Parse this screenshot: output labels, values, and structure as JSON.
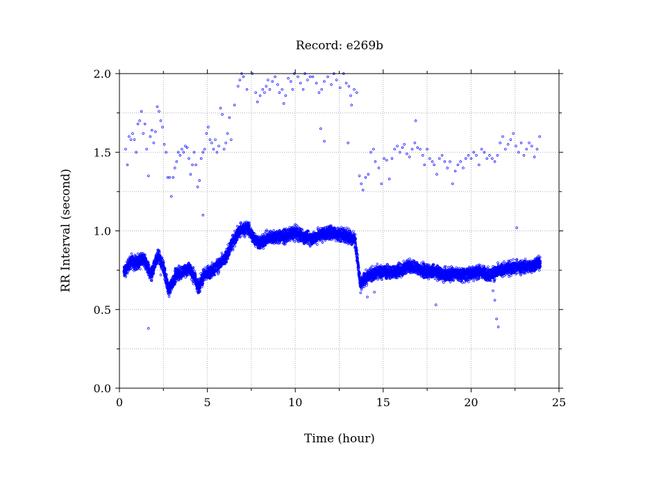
{
  "chart_data": {
    "type": "scatter",
    "title": "Record:  e269b",
    "xlabel": "Time (hour)",
    "ylabel": "RR Interval (second)",
    "xlim": [
      0,
      25
    ],
    "ylim": [
      0.0,
      2.0
    ],
    "x_ticks": [
      "0",
      "5",
      "10",
      "15",
      "20",
      "25"
    ],
    "y_ticks": [
      "0.0",
      "0.5",
      "1.0",
      "1.5",
      "2.0"
    ],
    "grid": true,
    "legend": "none",
    "marker": "open-circle",
    "color": "#0000ff",
    "series": [
      {
        "baseline": [
          [
            0.3,
            0.74
          ],
          [
            0.6,
            0.8
          ],
          [
            1.0,
            0.8
          ],
          [
            1.4,
            0.82
          ],
          [
            1.8,
            0.72
          ],
          [
            2.2,
            0.84
          ],
          [
            2.5,
            0.77
          ],
          [
            2.8,
            0.62
          ],
          [
            3.2,
            0.72
          ],
          [
            3.6,
            0.74
          ],
          [
            4.0,
            0.76
          ],
          [
            4.3,
            0.7
          ],
          [
            4.5,
            0.64
          ],
          [
            4.8,
            0.72
          ],
          [
            5.2,
            0.74
          ],
          [
            5.6,
            0.78
          ],
          [
            6.0,
            0.82
          ],
          [
            6.4,
            0.92
          ],
          [
            6.8,
            1.0
          ],
          [
            7.3,
            1.02
          ],
          [
            7.6,
            0.96
          ],
          [
            8.0,
            0.92
          ],
          [
            8.5,
            0.96
          ],
          [
            9.0,
            0.96
          ],
          [
            9.5,
            0.97
          ],
          [
            10.0,
            0.99
          ],
          [
            10.5,
            0.96
          ],
          [
            11.0,
            0.95
          ],
          [
            11.5,
            0.98
          ],
          [
            12.0,
            0.99
          ],
          [
            12.5,
            0.98
          ],
          [
            13.0,
            0.97
          ],
          [
            13.4,
            0.94
          ],
          [
            13.7,
            0.66
          ],
          [
            14.2,
            0.72
          ],
          [
            14.8,
            0.74
          ],
          [
            15.5,
            0.74
          ],
          [
            16.0,
            0.75
          ],
          [
            16.5,
            0.78
          ],
          [
            17.0,
            0.76
          ],
          [
            17.5,
            0.74
          ],
          [
            18.0,
            0.74
          ],
          [
            18.5,
            0.72
          ],
          [
            19.0,
            0.73
          ],
          [
            19.5,
            0.72
          ],
          [
            20.0,
            0.73
          ],
          [
            20.5,
            0.74
          ],
          [
            21.0,
            0.72
          ],
          [
            21.5,
            0.74
          ],
          [
            22.0,
            0.76
          ],
          [
            22.5,
            0.77
          ],
          [
            23.0,
            0.77
          ],
          [
            23.5,
            0.78
          ],
          [
            23.95,
            0.8
          ]
        ],
        "spread": 0.06,
        "x_range": [
          0.25,
          23.95
        ],
        "outliers": [
          [
            0.35,
            1.52
          ],
          [
            0.45,
            1.42
          ],
          [
            0.55,
            1.6
          ],
          [
            0.65,
            1.58
          ],
          [
            0.75,
            1.62
          ],
          [
            0.85,
            1.58
          ],
          [
            0.95,
            1.5
          ],
          [
            1.05,
            1.68
          ],
          [
            1.15,
            1.7
          ],
          [
            1.25,
            1.76
          ],
          [
            1.35,
            1.62
          ],
          [
            1.45,
            1.68
          ],
          [
            1.55,
            1.52
          ],
          [
            1.65,
            1.35
          ],
          [
            1.75,
            1.6
          ],
          [
            1.85,
            1.64
          ],
          [
            1.95,
            1.56
          ],
          [
            2.05,
            1.63
          ],
          [
            2.15,
            1.79
          ],
          [
            2.25,
            1.76
          ],
          [
            2.35,
            1.7
          ],
          [
            2.45,
            1.66
          ],
          [
            2.55,
            1.55
          ],
          [
            2.65,
            1.5
          ],
          [
            2.75,
            1.34
          ],
          [
            2.85,
            1.34
          ],
          [
            2.95,
            1.22
          ],
          [
            3.05,
            1.34
          ],
          [
            3.15,
            1.4
          ],
          [
            3.25,
            1.44
          ],
          [
            3.35,
            1.5
          ],
          [
            3.45,
            1.48
          ],
          [
            3.55,
            1.52
          ],
          [
            3.65,
            1.5
          ],
          [
            3.75,
            1.54
          ],
          [
            3.85,
            1.53
          ],
          [
            3.95,
            1.46
          ],
          [
            4.05,
            1.36
          ],
          [
            4.15,
            1.42
          ],
          [
            4.25,
            1.5
          ],
          [
            4.35,
            1.42
          ],
          [
            4.45,
            1.28
          ],
          [
            4.55,
            1.32
          ],
          [
            4.65,
            1.46
          ],
          [
            4.75,
            1.5
          ],
          [
            4.85,
            1.52
          ],
          [
            4.95,
            1.62
          ],
          [
            5.05,
            1.66
          ],
          [
            5.15,
            1.58
          ],
          [
            5.25,
            1.56
          ],
          [
            5.35,
            1.52
          ],
          [
            5.45,
            1.58
          ],
          [
            5.55,
            1.5
          ],
          [
            5.65,
            1.54
          ],
          [
            5.75,
            1.78
          ],
          [
            5.85,
            1.74
          ],
          [
            5.95,
            1.52
          ],
          [
            6.05,
            1.56
          ],
          [
            6.15,
            1.62
          ],
          [
            6.25,
            1.72
          ],
          [
            6.35,
            1.58
          ],
          [
            6.55,
            1.8
          ],
          [
            6.75,
            1.92
          ],
          [
            6.85,
            1.96
          ],
          [
            6.95,
            2.0
          ],
          [
            7.05,
            1.98
          ],
          [
            7.25,
            1.9
          ],
          [
            7.55,
            2.0
          ],
          [
            7.75,
            1.88
          ],
          [
            7.85,
            1.82
          ],
          [
            8.0,
            1.86
          ],
          [
            8.15,
            1.9
          ],
          [
            8.25,
            1.88
          ],
          [
            8.35,
            1.92
          ],
          [
            8.45,
            1.96
          ],
          [
            8.55,
            1.9
          ],
          [
            8.7,
            1.95
          ],
          [
            8.85,
            1.98
          ],
          [
            9.0,
            1.93
          ],
          [
            9.1,
            1.88
          ],
          [
            9.25,
            1.9
          ],
          [
            9.35,
            1.81
          ],
          [
            9.45,
            1.86
          ],
          [
            9.6,
            1.97
          ],
          [
            9.75,
            1.95
          ],
          [
            9.85,
            1.9
          ],
          [
            9.95,
            2.0
          ],
          [
            10.15,
            1.98
          ],
          [
            10.3,
            1.94
          ],
          [
            10.45,
            1.9
          ],
          [
            10.55,
            2.0
          ],
          [
            10.7,
            1.96
          ],
          [
            10.85,
            1.98
          ],
          [
            11.0,
            1.98
          ],
          [
            11.2,
            1.94
          ],
          [
            11.35,
            1.88
          ],
          [
            11.5,
            1.9
          ],
          [
            11.65,
            1.95
          ],
          [
            11.85,
            1.98
          ],
          [
            12.05,
            1.93
          ],
          [
            12.2,
            2.0
          ],
          [
            12.35,
            1.96
          ],
          [
            12.55,
            1.91
          ],
          [
            12.75,
            2.0
          ],
          [
            12.9,
            1.94
          ],
          [
            13.05,
            1.92
          ],
          [
            13.15,
            1.86
          ],
          [
            13.35,
            1.9
          ],
          [
            13.5,
            1.88
          ],
          [
            13.65,
            1.35
          ],
          [
            13.75,
            1.3
          ],
          [
            13.85,
            1.26
          ],
          [
            14.0,
            1.34
          ],
          [
            14.15,
            1.36
          ],
          [
            14.3,
            1.5
          ],
          [
            14.45,
            1.52
          ],
          [
            14.55,
            1.44
          ],
          [
            14.75,
            1.4
          ],
          [
            14.9,
            1.3
          ],
          [
            15.05,
            1.46
          ],
          [
            15.2,
            1.45
          ],
          [
            15.35,
            1.33
          ],
          [
            15.5,
            1.46
          ],
          [
            15.65,
            1.52
          ],
          [
            15.8,
            1.54
          ],
          [
            15.95,
            1.5
          ],
          [
            16.1,
            1.53
          ],
          [
            16.2,
            1.55
          ],
          [
            16.35,
            1.49
          ],
          [
            16.5,
            1.47
          ],
          [
            16.65,
            1.52
          ],
          [
            16.8,
            1.56
          ],
          [
            16.95,
            1.53
          ],
          [
            17.1,
            1.52
          ],
          [
            17.25,
            1.48
          ],
          [
            17.35,
            1.42
          ],
          [
            17.5,
            1.52
          ],
          [
            17.65,
            1.46
          ],
          [
            17.8,
            1.44
          ],
          [
            17.9,
            1.42
          ],
          [
            18.05,
            1.36
          ],
          [
            18.2,
            1.46
          ],
          [
            18.35,
            1.48
          ],
          [
            18.5,
            1.44
          ],
          [
            18.65,
            1.4
          ],
          [
            18.8,
            1.44
          ],
          [
            18.95,
            1.3
          ],
          [
            19.1,
            1.38
          ],
          [
            19.25,
            1.42
          ],
          [
            19.4,
            1.44
          ],
          [
            19.55,
            1.4
          ],
          [
            19.7,
            1.46
          ],
          [
            19.85,
            1.48
          ],
          [
            20.0,
            1.46
          ],
          [
            20.15,
            1.5
          ],
          [
            20.3,
            1.48
          ],
          [
            20.45,
            1.42
          ],
          [
            20.6,
            1.52
          ],
          [
            20.75,
            1.5
          ],
          [
            20.9,
            1.46
          ],
          [
            21.05,
            1.48
          ],
          [
            21.2,
            1.46
          ],
          [
            21.35,
            1.44
          ],
          [
            21.5,
            1.48
          ],
          [
            21.65,
            1.56
          ],
          [
            21.8,
            1.6
          ],
          [
            21.95,
            1.52
          ],
          [
            22.1,
            1.55
          ],
          [
            22.25,
            1.58
          ],
          [
            22.4,
            1.62
          ],
          [
            22.55,
            1.54
          ],
          [
            22.7,
            1.5
          ],
          [
            22.85,
            1.56
          ],
          [
            23.0,
            1.48
          ],
          [
            23.15,
            1.52
          ],
          [
            23.3,
            1.56
          ],
          [
            23.45,
            1.54
          ],
          [
            23.6,
            1.47
          ],
          [
            23.75,
            1.52
          ],
          [
            23.9,
            1.6
          ],
          [
            1.65,
            0.38
          ],
          [
            4.75,
            1.1
          ],
          [
            21.45,
            0.44
          ],
          [
            21.55,
            0.39
          ],
          [
            21.35,
            0.56
          ],
          [
            21.25,
            0.62
          ],
          [
            22.6,
            1.02
          ],
          [
            11.45,
            1.65
          ],
          [
            11.65,
            1.57
          ],
          [
            18.0,
            0.53
          ],
          [
            16.85,
            1.7
          ],
          [
            2.35,
            0.72
          ],
          [
            13.2,
            1.8
          ],
          [
            13.0,
            1.56
          ],
          [
            14.5,
            0.61
          ],
          [
            14.1,
            0.58
          ]
        ]
      }
    ]
  }
}
